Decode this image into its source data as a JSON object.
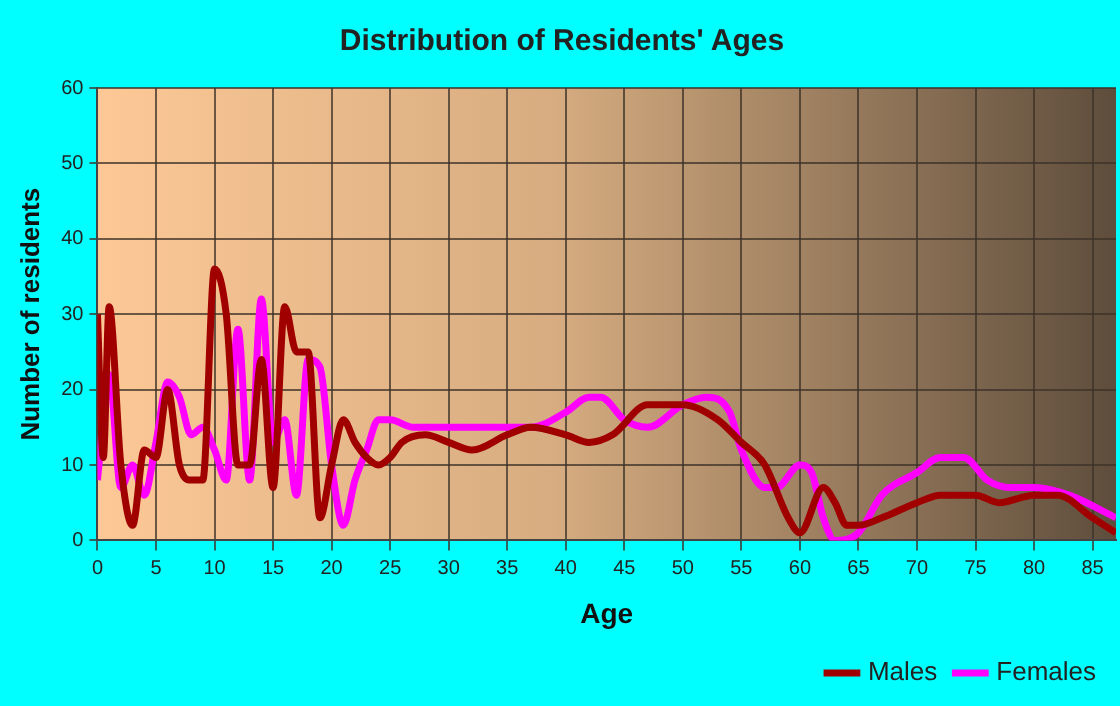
{
  "chart_data": {
    "type": "line",
    "title": "Distribution of Residents' Ages",
    "xlabel": "Age",
    "ylabel": "Number of residents",
    "xlim": [
      0,
      87
    ],
    "xticks": [
      0,
      5,
      10,
      15,
      20,
      25,
      30,
      35,
      40,
      45,
      50,
      55,
      60,
      65,
      70,
      75,
      80,
      85
    ],
    "ylim": [
      0,
      60
    ],
    "yticks": [
      0,
      10,
      20,
      30,
      40,
      50,
      60
    ],
    "grid": true,
    "legend": "bottom right",
    "marker": "none",
    "line_style": "solid",
    "series": [
      {
        "name": "Males",
        "color": "#a00000",
        "x": [
          0,
          0.5,
          1,
          2,
          3,
          4,
          5,
          6,
          7,
          8,
          9,
          10,
          11,
          12,
          13,
          14,
          15,
          16,
          17,
          18,
          19,
          20,
          21,
          22,
          23,
          24,
          25,
          26,
          28,
          30,
          32,
          35,
          37,
          40,
          42,
          44,
          47,
          50,
          53,
          55,
          57,
          59,
          60,
          62,
          63,
          64,
          65,
          67,
          70,
          72,
          75,
          77,
          80,
          82,
          85,
          87
        ],
        "values": [
          30,
          11,
          31,
          10,
          2,
          12,
          11,
          20,
          10,
          8,
          8,
          36,
          30,
          10,
          10,
          24,
          7,
          31,
          25,
          25,
          3,
          10,
          16,
          13,
          11,
          10,
          11,
          13,
          14,
          13,
          12,
          14,
          15,
          14,
          13,
          14,
          18,
          18,
          16,
          13,
          10,
          3,
          1,
          7,
          5,
          2,
          2,
          3,
          5,
          6,
          6,
          5,
          6,
          6,
          3,
          1
        ]
      },
      {
        "name": "Females",
        "color": "#ff00ff",
        "x": [
          0,
          1,
          2,
          3,
          4,
          5,
          6,
          7,
          8,
          9,
          10,
          11,
          12,
          13,
          14,
          15,
          16,
          17,
          18,
          19,
          20,
          21,
          22,
          23,
          24,
          25,
          27,
          30,
          33,
          35,
          37,
          40,
          42,
          43,
          45,
          47,
          50,
          52,
          54,
          55,
          57,
          58,
          60,
          61,
          62,
          63,
          65,
          67,
          70,
          72,
          74,
          76,
          78,
          80,
          83,
          87
        ],
        "values": [
          8,
          22,
          7,
          10,
          6,
          13,
          21,
          19,
          14,
          15,
          12,
          8,
          28,
          8,
          32,
          13,
          16,
          6,
          24,
          23,
          10,
          2,
          8,
          12,
          16,
          16,
          15,
          15,
          15,
          15,
          15,
          17,
          19,
          19,
          16,
          15,
          18,
          19,
          17,
          12,
          7,
          7,
          10,
          9,
          3,
          0,
          1,
          6,
          9,
          11,
          11,
          8,
          7,
          7,
          6,
          3
        ]
      }
    ]
  }
}
